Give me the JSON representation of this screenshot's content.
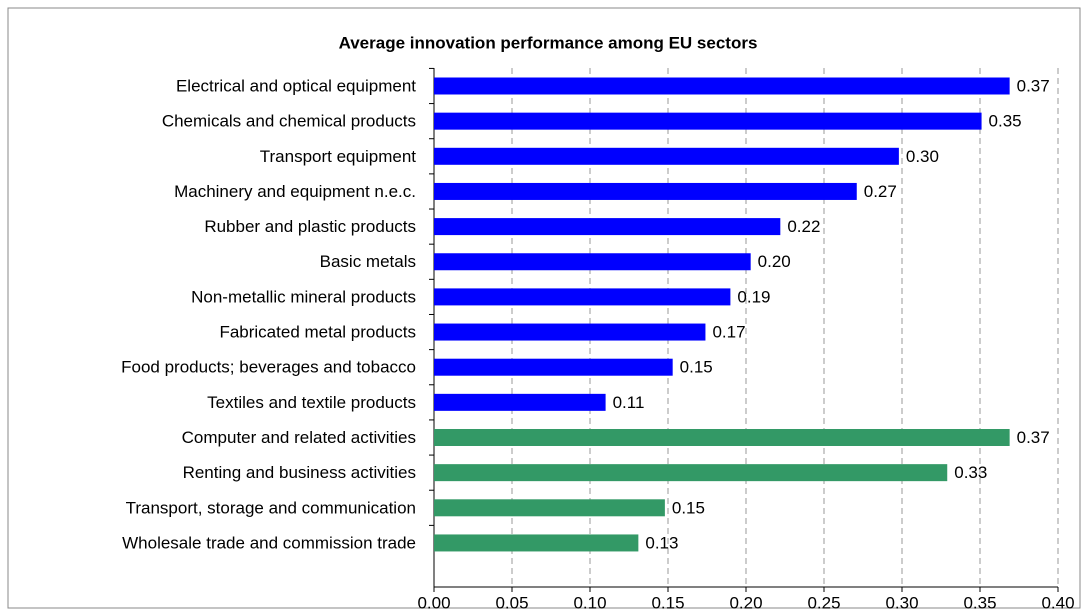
{
  "chart_data": {
    "type": "bar",
    "orientation": "horizontal",
    "title": "Average innovation performance among EU sectors",
    "categories": [
      "Electrical and optical equipment",
      "Chemicals and chemical products",
      "Transport equipment",
      "Machinery and equipment n.e.c.",
      "Rubber and plastic products",
      "Basic metals",
      "Non-metallic mineral products",
      "Fabricated metal products",
      "Food products; beverages and tobacco",
      "Textiles and textile products",
      "Computer and related activities",
      "Renting and business activities",
      "Transport, storage and communication",
      "Wholesale trade and commission trade"
    ],
    "values": [
      0.369,
      0.351,
      0.298,
      0.271,
      0.222,
      0.203,
      0.19,
      0.174,
      0.153,
      0.11,
      0.369,
      0.329,
      0.148,
      0.131
    ],
    "value_labels": [
      "0.37",
      "0.35",
      "0.30",
      "0.27",
      "0.22",
      "0.20",
      "0.19",
      "0.17",
      "0.15",
      "0.11",
      "0.37",
      "0.33",
      "0.15",
      "0.13"
    ],
    "colors": [
      "#0000ff",
      "#0000ff",
      "#0000ff",
      "#0000ff",
      "#0000ff",
      "#0000ff",
      "#0000ff",
      "#0000ff",
      "#0000ff",
      "#0000ff",
      "#339966",
      "#339966",
      "#339966",
      "#339966"
    ],
    "xlim": [
      0,
      0.4
    ],
    "xticks": [
      {
        "value": 0,
        "label": "0.00"
      },
      {
        "value": 0.05,
        "label": "0.05"
      },
      {
        "value": 0.1,
        "label": "0.10"
      },
      {
        "value": 0.15,
        "label": "0.15"
      },
      {
        "value": 0.2,
        "label": "0.20"
      },
      {
        "value": 0.25,
        "label": "0.25"
      },
      {
        "value": 0.3,
        "label": "0.30"
      },
      {
        "value": 0.35,
        "label": "0.35"
      },
      {
        "value": 0.4,
        "label": "0.40"
      }
    ],
    "grid": true
  }
}
